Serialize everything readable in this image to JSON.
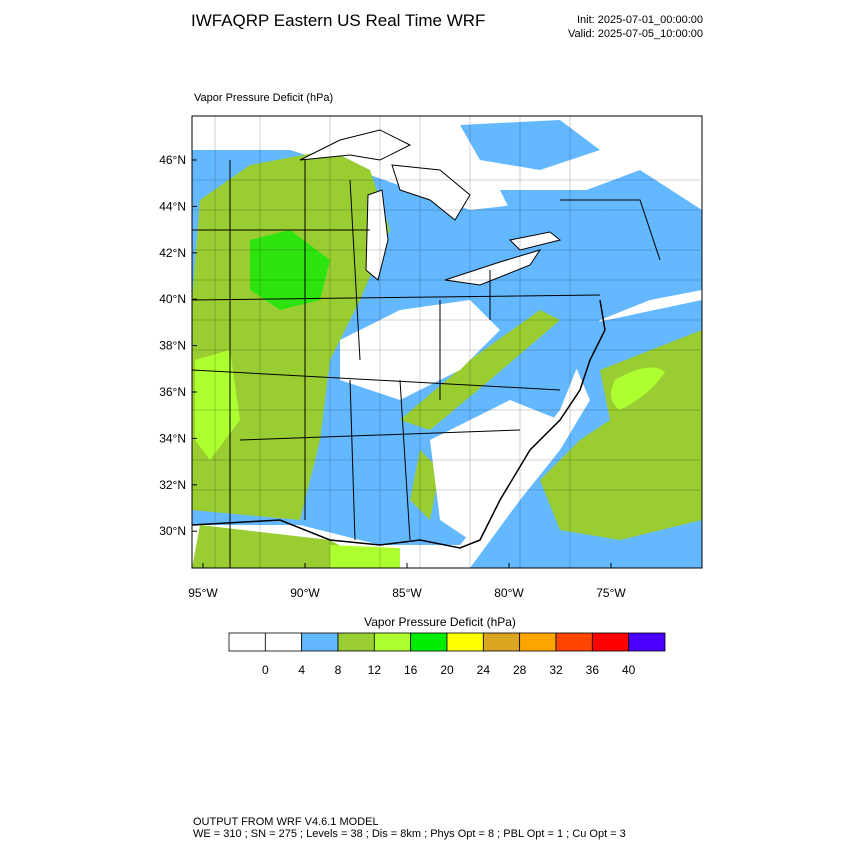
{
  "header": {
    "title": "IWFAQRP Eastern US Real Time WRF",
    "init": "Init: 2025-07-01_00:00:00",
    "valid": "Valid: 2025-07-05_10:00:00"
  },
  "map": {
    "subtitle": "Vapor Pressure Deficit   (hPa)",
    "lat_labels": [
      "46°N",
      "44°N",
      "42°N",
      "40°N",
      "38°N",
      "36°N",
      "34°N",
      "32°N",
      "30°N"
    ],
    "lon_labels": [
      "95°W",
      "90°W",
      "85°W",
      "80°W",
      "75°W"
    ]
  },
  "colorbar": {
    "title": "Vapor Pressure Deficit  (hPa)",
    "colors": [
      "#ffffff",
      "#ffffff",
      "#63b8ff",
      "#9acd32",
      "#adff2f",
      "#00ee00",
      "#ffff00",
      "#daa520",
      "#ffa500",
      "#ff4500",
      "#ff0000",
      "#4b00ff"
    ],
    "levels": [
      0,
      4,
      8,
      12,
      16,
      20,
      24,
      28,
      32,
      36,
      40
    ]
  },
  "footer": {
    "line1": "OUTPUT FROM WRF V4.6.1 MODEL",
    "line2": "WE = 310 ; SN = 275 ; Levels = 38 ; Dis = 8km ; Phys Opt = 8 ; PBL Opt = 1 ; Cu Opt = 3"
  }
}
